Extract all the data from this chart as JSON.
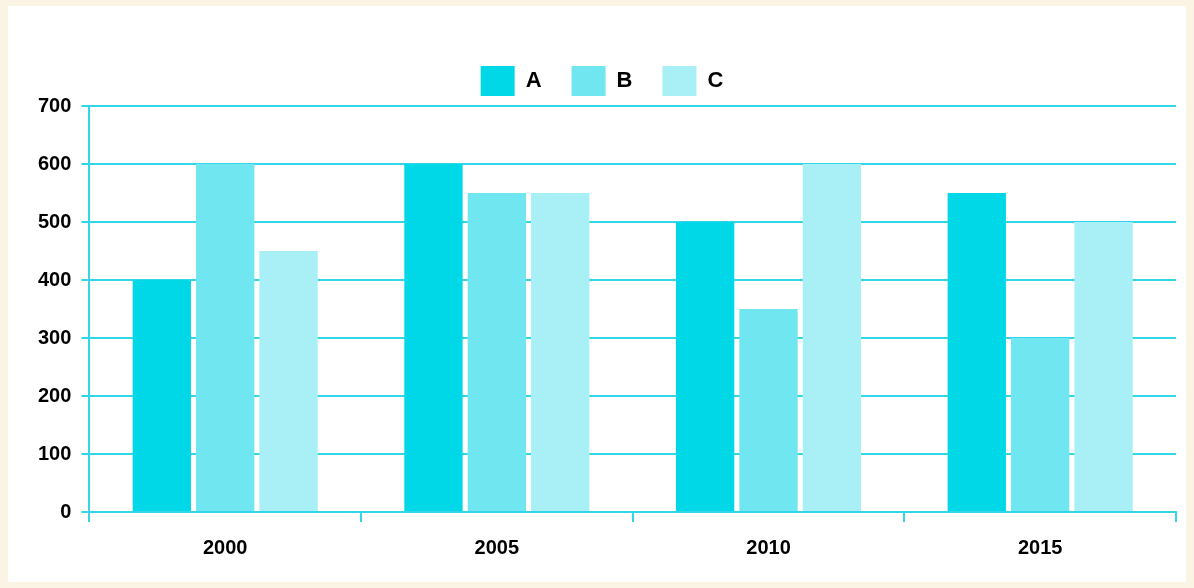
{
  "chart_data": {
    "type": "bar",
    "categories": [
      "2000",
      "2005",
      "2010",
      "2015"
    ],
    "series": [
      {
        "name": "A",
        "color": "#00d8e8",
        "values": [
          400,
          600,
          500,
          550
        ]
      },
      {
        "name": "B",
        "color": "#6fe6f0",
        "values": [
          600,
          550,
          350,
          300
        ]
      },
      {
        "name": "C",
        "color": "#a8f0f6",
        "values": [
          450,
          550,
          600,
          500
        ]
      }
    ],
    "ylim": [
      0,
      700
    ],
    "yticks": [
      0,
      100,
      200,
      300,
      400,
      500,
      600,
      700
    ],
    "grid": "y",
    "legend": "top"
  }
}
